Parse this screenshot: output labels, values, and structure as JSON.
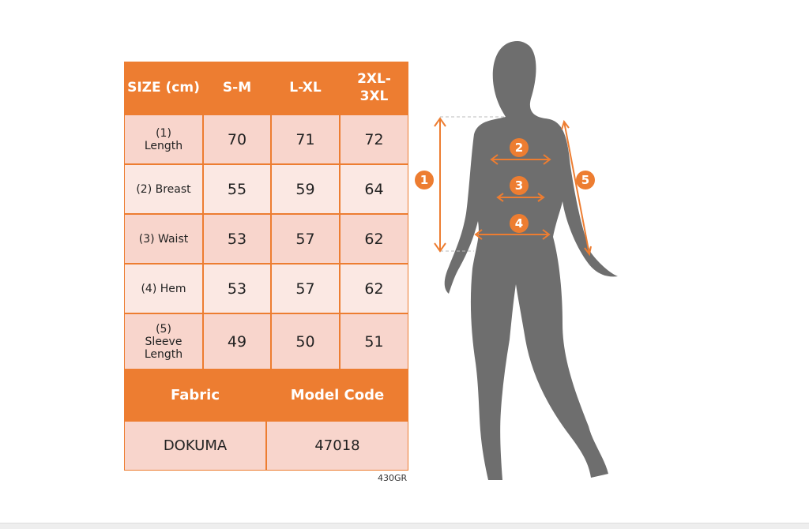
{
  "table": {
    "headers": [
      "SIZE (cm)",
      "S-M",
      "L-XL",
      "2XL-3XL"
    ],
    "rows": [
      {
        "label": "(1) Length",
        "values": [
          "70",
          "71",
          "72"
        ]
      },
      {
        "label": "(2) Breast",
        "values": [
          "55",
          "59",
          "64"
        ]
      },
      {
        "label": "(3) Waist",
        "values": [
          "53",
          "57",
          "62"
        ]
      },
      {
        "label": "(4) Hem",
        "values": [
          "53",
          "57",
          "62"
        ]
      },
      {
        "label": "(5) Sleeve Length",
        "values": [
          "49",
          "50",
          "51"
        ]
      }
    ],
    "footer_headers": [
      "Fabric",
      "Model Code"
    ],
    "footer_values": [
      "DOKUMA",
      "47018"
    ]
  },
  "code": "430GR",
  "markers": [
    "1",
    "2",
    "3",
    "4",
    "5"
  ],
  "colors": {
    "accent": "#ed7d31",
    "silhouette": "#6e6e6e"
  }
}
